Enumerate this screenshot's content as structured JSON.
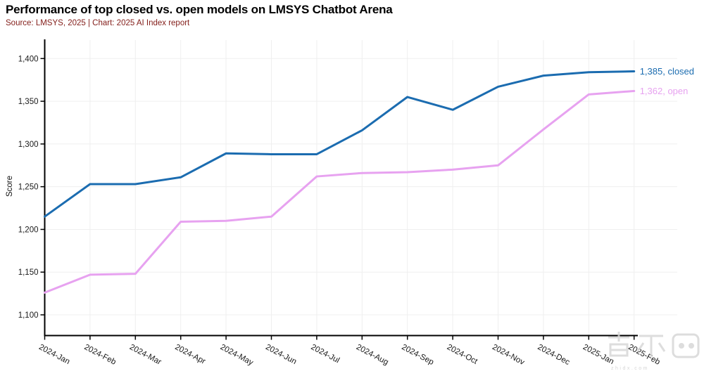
{
  "header": {
    "title": "Performance of top closed vs. open models on LMSYS Chatbot Arena",
    "subtitle": "Source: LMSYS, 2025 | Chart: 2025 AI Index report"
  },
  "watermark": {
    "text": "智东西",
    "subtext": "zhidx.com"
  },
  "chart_data": {
    "type": "line",
    "title": "Performance of top closed vs. open models on LMSYS Chatbot Arena",
    "subtitle": "Source: LMSYS, 2025 | Chart: 2025 AI Index report",
    "xlabel": "",
    "ylabel": "Score",
    "categories": [
      "2024-Jan",
      "2024-Feb",
      "2024-Mar",
      "2024-Apr",
      "2024-May",
      "2024-Jun",
      "2024-Jul",
      "2024-Aug",
      "2024-Sep",
      "2024-Oct",
      "2024-Nov",
      "2024-Dec",
      "2025-Jan",
      "2025-Feb"
    ],
    "series": [
      {
        "name": "closed",
        "color": "#1b6cb0",
        "end_label": "1,385, closed",
        "values": [
          1215,
          1253,
          1253,
          1261,
          1289,
          1288,
          1288,
          1316,
          1355,
          1340,
          1367,
          1380,
          1384,
          1385
        ]
      },
      {
        "name": "open",
        "color": "#e7a2f0",
        "end_label": "1,362, open",
        "values": [
          1126,
          1147,
          1148,
          1209,
          1210,
          1215,
          1262,
          1266,
          1267,
          1270,
          1275,
          1317,
          1358,
          1362
        ]
      }
    ],
    "yticks": [
      1100,
      1150,
      1200,
      1250,
      1300,
      1350,
      1400
    ],
    "ylim": [
      1075,
      1422
    ],
    "grid": true,
    "grid_color": "#efefef",
    "axis_color": "#000000",
    "tick_label_color": "#1a1a1a",
    "legend_position": "end-of-line"
  }
}
